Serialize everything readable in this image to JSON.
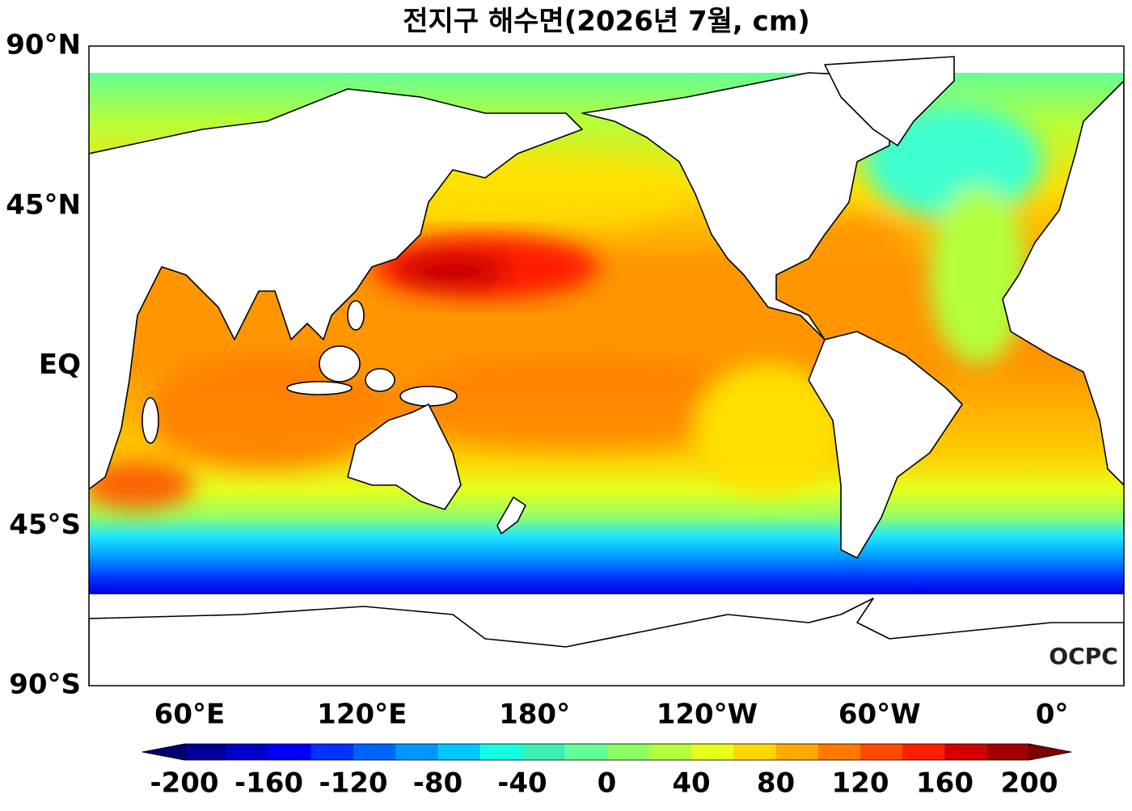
{
  "title": "전지구 해수면(2026년 7월, cm)",
  "map": {
    "lonlim": [
      25,
      385
    ],
    "latlim": [
      -90,
      90
    ],
    "lat_ticks": [
      {
        "value": 90,
        "label": "90°N"
      },
      {
        "value": 45,
        "label": "45°N"
      },
      {
        "value": 0,
        "label": "EQ"
      },
      {
        "value": -45,
        "label": "45°S"
      },
      {
        "value": -90,
        "label": "90°S"
      }
    ],
    "lon_ticks": [
      {
        "value": 60,
        "label": "60°E"
      },
      {
        "value": 120,
        "label": "120°E"
      },
      {
        "value": 180,
        "label": "180°"
      },
      {
        "value": 240,
        "label": "120°W"
      },
      {
        "value": 300,
        "label": "60°W"
      },
      {
        "value": 360,
        "label": "0°"
      }
    ]
  },
  "colorbar": {
    "clim": [
      -200,
      200
    ],
    "ticks": [
      -200,
      -160,
      -120,
      -80,
      -40,
      0,
      40,
      80,
      120,
      160,
      200
    ],
    "colors": [
      "#000096",
      "#0000c8",
      "#0000ff",
      "#0032ff",
      "#0064ff",
      "#0096ff",
      "#00c8ff",
      "#14ffe6",
      "#3cf0b4",
      "#64ff96",
      "#8cff64",
      "#b4ff3c",
      "#e6ff1e",
      "#ffd700",
      "#ffaa00",
      "#ff7800",
      "#ff4b00",
      "#ff1e00",
      "#d20000",
      "#a00000"
    ],
    "under_color": "#00006e",
    "over_color": "#7d0000"
  },
  "logo": "OCPC"
}
